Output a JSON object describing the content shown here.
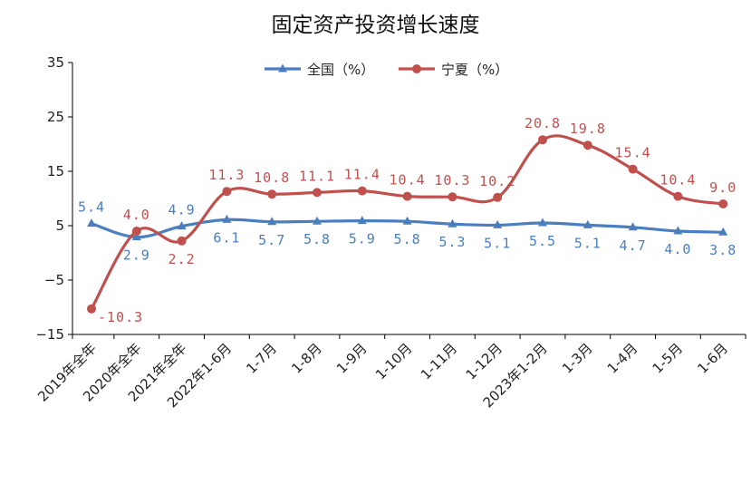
{
  "chart_data": {
    "type": "line",
    "title": "固定资产投资增长速度",
    "categories": [
      "2019年全年",
      "2020年全年",
      "2021年全年",
      "2022年1-6月",
      "1-7月",
      "1-8月",
      "1-9月",
      "1-10月",
      "1-11月",
      "1-12月",
      "2023年1-2月",
      "1-3月",
      "1-4月",
      "1-5月",
      "1-6月"
    ],
    "series": [
      {
        "name": "全国（%）",
        "color": "#4a7ebf",
        "marker": "triangle",
        "values": [
          5.4,
          2.9,
          4.9,
          6.1,
          5.7,
          5.8,
          5.9,
          5.8,
          5.3,
          5.1,
          5.5,
          5.1,
          4.7,
          4.0,
          3.8
        ],
        "labels": [
          "5.4",
          "2.9",
          "4.9",
          "6.1",
          "5.7",
          "5.8",
          "5.9",
          "5.8",
          "5.3",
          "5.1",
          "5.5",
          "5.1",
          "4.7",
          "4.0",
          "3.8"
        ]
      },
      {
        "name": "宁夏（%）",
        "color": "#c0504d",
        "marker": "circle",
        "values": [
          -10.3,
          4.0,
          2.2,
          11.3,
          10.8,
          11.1,
          11.4,
          10.4,
          10.3,
          10.2,
          20.8,
          19.8,
          15.4,
          10.4,
          9.0
        ],
        "labels": [
          "-10.3",
          "4.0",
          "2.2",
          "11.3",
          "10.8",
          "11.1",
          "11.4",
          "10.4",
          "10.3",
          "10.2",
          "20.8",
          "19.8",
          "15.4",
          "10.4",
          "9.0"
        ]
      }
    ],
    "ylim": [
      -15,
      35
    ],
    "yticks": [
      35,
      25,
      15,
      5,
      -5,
      -15
    ],
    "ytick_labels": [
      "35",
      "25",
      "15",
      "5",
      "−5",
      "−15"
    ],
    "legend_position": "top-center",
    "grid": false
  }
}
